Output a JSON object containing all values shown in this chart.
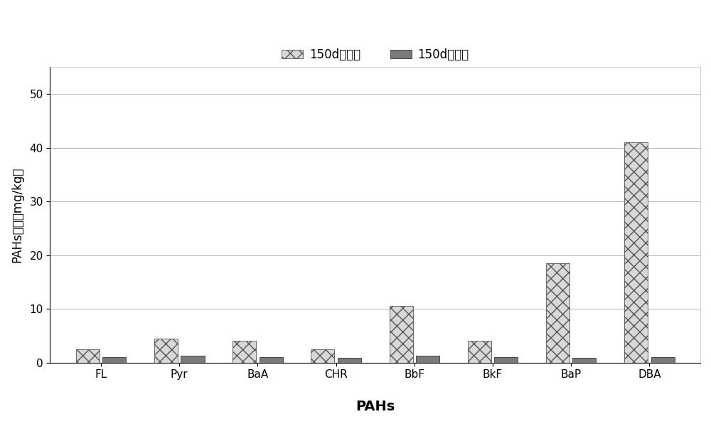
{
  "categories": [
    "FL",
    "Pyr",
    "BaA",
    "CHR",
    "BbF",
    "BkF",
    "BaP",
    "DBA"
  ],
  "before_planting": [
    2.5,
    4.5,
    4.0,
    2.5,
    10.5,
    4.0,
    18.5,
    41.0
  ],
  "after_planting": [
    1.0,
    1.2,
    1.0,
    0.8,
    1.2,
    1.0,
    0.8,
    1.0
  ],
  "legend_label_before": "150d种植前",
  "legend_label_after": "150d种植后",
  "xlabel": "PAHs",
  "ylabel": "PAHs浓度（mg/kg）",
  "ylim": [
    0,
    55
  ],
  "yticks": [
    0,
    10,
    20,
    30,
    40,
    50
  ],
  "bar_width": 0.3,
  "before_facecolor": "#d8d8d8",
  "after_facecolor": "#7a7a7a",
  "background_color": "#ffffff",
  "grid_color": "#aaaaaa",
  "axis_fontsize": 13,
  "tick_fontsize": 11,
  "legend_fontsize": 12
}
